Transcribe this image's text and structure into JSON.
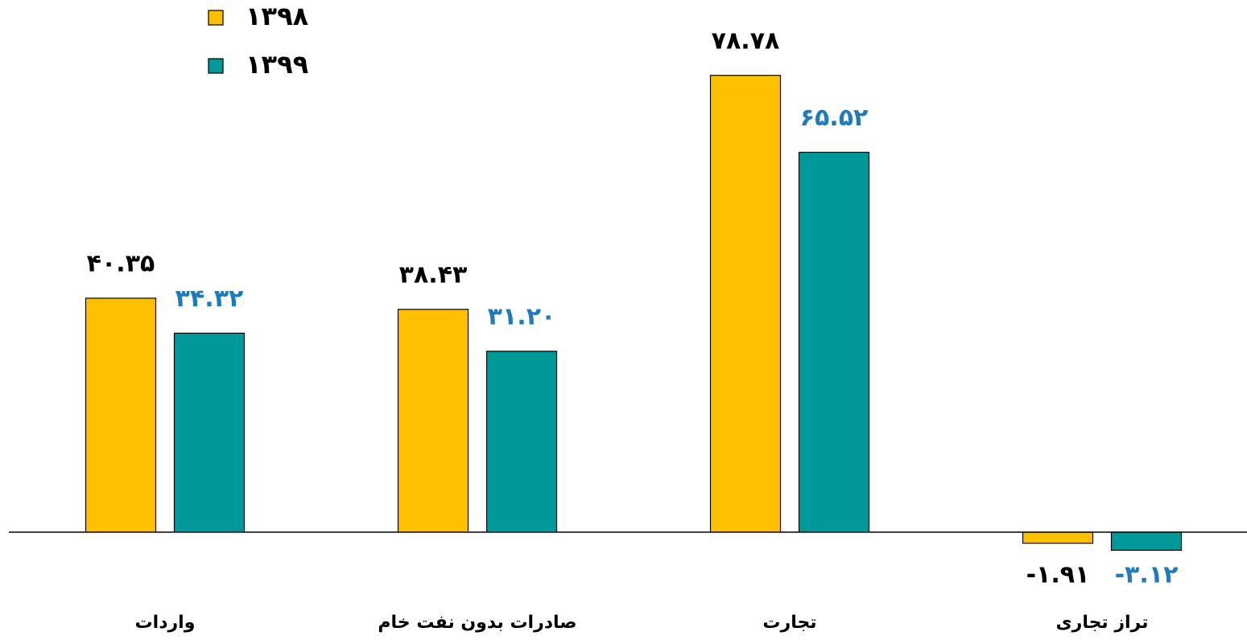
{
  "chart_data": {
    "type": "bar",
    "categories": [
      "واردات",
      "صادرات بدون نفت خام",
      "تجارت",
      "تراز تجاری"
    ],
    "series": [
      {
        "name": "۱۳۹۸",
        "color": "#FFC000",
        "values": [
          40.35,
          38.43,
          78.78,
          -1.91
        ],
        "value_labels": [
          "۴۰.۳۵",
          "۳۸.۴۳",
          "۷۸.۷۸",
          "-۱.۹۱"
        ]
      },
      {
        "name": "۱۳۹۹",
        "color": "#009999",
        "values": [
          34.32,
          31.2,
          65.52,
          -3.12
        ],
        "value_labels": [
          "۳۴.۳۲",
          "۳۱.۲۰",
          "۶۵.۵۲",
          "-۳.۱۲"
        ]
      }
    ],
    "ylim": [
      -10,
      80
    ]
  }
}
